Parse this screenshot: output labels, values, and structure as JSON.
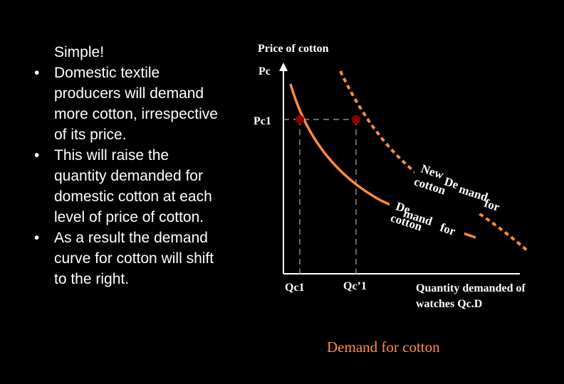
{
  "slide": {
    "bullets": [
      {
        "text": "Simple!",
        "bullet": ""
      },
      {
        "text": "Domestic textile",
        "bullet": "•"
      },
      {
        "text": "producers will demand",
        "bullet": ""
      },
      {
        "text": "more cotton, irrespective",
        "bullet": ""
      },
      {
        "text": "of its price.",
        "bullet": ""
      },
      {
        "text": "This will raise the",
        "bullet": "•"
      },
      {
        "text": "quantity demanded for",
        "bullet": ""
      },
      {
        "text": "domestic cotton at each",
        "bullet": ""
      },
      {
        "text": "level of price of cotton.",
        "bullet": ""
      },
      {
        "text": "As a result the demand",
        "bullet": "•"
      },
      {
        "text": "curve for cotton will shift",
        "bullet": ""
      },
      {
        "text": "to the right.",
        "bullet": ""
      }
    ]
  },
  "diagram": {
    "y_axis_title": "Price of cotton",
    "pc_label": "Pc",
    "pc1_label": "Pc1",
    "qc1_label": "Qc1",
    "qc1_new_label": "Qc’1",
    "x_axis_title_line1": "Quantity demanded of",
    "x_axis_title_line2": "watches   Qc.D",
    "caption": "Demand for cotton",
    "new_curve_label": {
      "line1": "New",
      "line2a": "De",
      "line2b": "cotton",
      "line2c": "mand",
      "line2d": "for"
    },
    "old_curve_label": {
      "line1": "De",
      "line2": "mand",
      "line3": "cotton",
      "line4": "for"
    },
    "colors": {
      "demand_curve": "#ff8c3a",
      "new_demand_curve": "#ff8c3a",
      "point": "#8b0000",
      "guide": "#888888",
      "axis": "#ffffff",
      "label_bg": "#000000"
    }
  }
}
